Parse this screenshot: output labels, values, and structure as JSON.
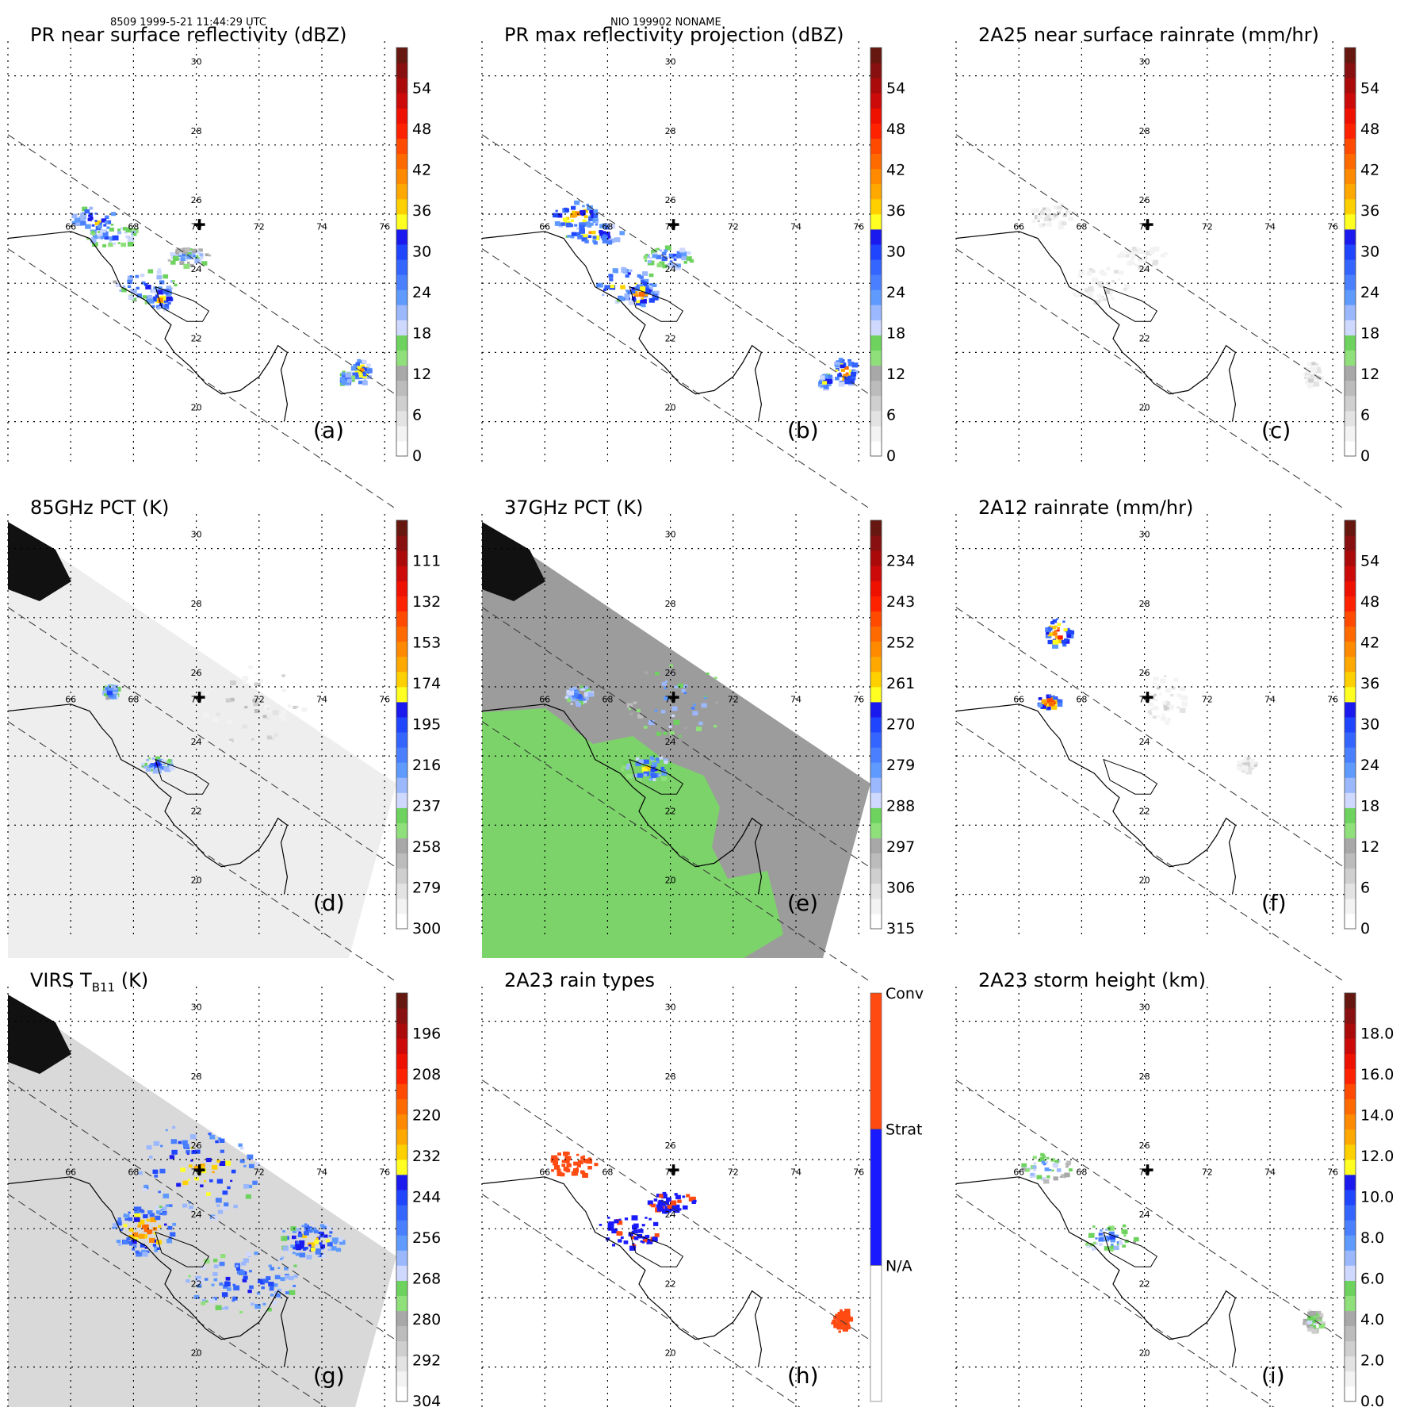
{
  "header": {
    "left": "8509 1999-5-21 11:44:29 UTC",
    "center": "NIO 199902 NONAME"
  },
  "colors": {
    "grid": "#000000",
    "swath": "#333333",
    "coast": "#000000"
  },
  "geo": {
    "lon_ticks": [
      "66",
      "68",
      "70",
      "72",
      "74",
      "76"
    ],
    "lat_ticks": [
      "30",
      "28",
      "26",
      "24",
      "22",
      "20"
    ],
    "storm_center": {
      "lon": 70.1,
      "lat": 25.7
    }
  },
  "chart_data": [
    {
      "type": "heatmap",
      "panel_label": "(a)",
      "title": "PR near surface reflectivity (dBZ)",
      "colorbar": {
        "type": "continuous",
        "ticks": [
          "0",
          "6",
          "12",
          "18",
          "24",
          "30",
          "36",
          "42",
          "48",
          "54"
        ],
        "range": [
          0,
          60
        ]
      },
      "field": "pr",
      "features": [
        {
          "lon": 66.7,
          "lat": 25.9,
          "rx": 0.7,
          "ry": 0.4,
          "level": 0.65
        },
        {
          "lon": 67.3,
          "lat": 25.4,
          "rx": 0.9,
          "ry": 0.3,
          "level": 0.5
        },
        {
          "lon": 68.3,
          "lat": 24.0,
          "rx": 1.0,
          "ry": 0.5,
          "level": 0.55
        },
        {
          "lon": 69.7,
          "lat": 24.8,
          "rx": 0.7,
          "ry": 0.25,
          "level": 0.45
        },
        {
          "lon": 68.8,
          "lat": 23.6,
          "rx": 0.4,
          "ry": 0.3,
          "level": 0.75
        },
        {
          "lon": 75.2,
          "lat": 21.5,
          "rx": 0.3,
          "ry": 0.35,
          "level": 0.7
        },
        {
          "lon": 74.7,
          "lat": 21.3,
          "rx": 0.2,
          "ry": 0.2,
          "level": 0.6
        }
      ]
    },
    {
      "type": "heatmap",
      "panel_label": "(b)",
      "title": "PR max reflectivity projection (dBZ)",
      "colorbar": {
        "type": "continuous",
        "ticks": [
          "0",
          "6",
          "12",
          "18",
          "24",
          "30",
          "36",
          "42",
          "48",
          "54"
        ],
        "range": [
          0,
          60
        ]
      },
      "field": "pr",
      "features": [
        {
          "lon": 66.9,
          "lat": 26.0,
          "rx": 0.8,
          "ry": 0.4,
          "level": 0.75
        },
        {
          "lon": 67.5,
          "lat": 25.5,
          "rx": 0.9,
          "ry": 0.3,
          "level": 0.7
        },
        {
          "lon": 68.5,
          "lat": 24.0,
          "rx": 1.0,
          "ry": 0.5,
          "level": 0.7
        },
        {
          "lon": 69.9,
          "lat": 24.8,
          "rx": 0.8,
          "ry": 0.3,
          "level": 0.55
        },
        {
          "lon": 69.0,
          "lat": 23.7,
          "rx": 0.5,
          "ry": 0.3,
          "level": 0.8
        },
        {
          "lon": 75.5,
          "lat": 21.5,
          "rx": 0.35,
          "ry": 0.4,
          "level": 0.8
        },
        {
          "lon": 74.9,
          "lat": 21.2,
          "rx": 0.2,
          "ry": 0.2,
          "level": 0.65
        }
      ]
    },
    {
      "type": "heatmap",
      "panel_label": "(c)",
      "title": "2A25 near surface rainrate (mm/hr)",
      "colorbar": {
        "type": "continuous",
        "ticks": [
          "0",
          "6",
          "12",
          "18",
          "24",
          "30",
          "36",
          "42",
          "48",
          "54"
        ],
        "range": [
          0,
          60
        ]
      },
      "field": "rain",
      "features": [
        {
          "lon": 67.0,
          "lat": 26.0,
          "rx": 0.7,
          "ry": 0.35,
          "level": 0.12
        },
        {
          "lon": 68.5,
          "lat": 24.0,
          "rx": 1.0,
          "ry": 0.5,
          "level": 0.08
        },
        {
          "lon": 69.9,
          "lat": 24.8,
          "rx": 0.8,
          "ry": 0.3,
          "level": 0.06
        },
        {
          "lon": 75.3,
          "lat": 21.4,
          "rx": 0.3,
          "ry": 0.35,
          "level": 0.1
        }
      ]
    },
    {
      "type": "heatmap",
      "panel_label": "(d)",
      "title": "85GHz PCT (K)",
      "colorbar": {
        "type": "continuous",
        "ticks": [
          "300",
          "279",
          "258",
          "237",
          "216",
          "195",
          "174",
          "153",
          "132",
          "111"
        ],
        "range": [
          300,
          90
        ]
      },
      "field": "pct85",
      "features": [
        {
          "lon": 67.2,
          "lat": 25.9,
          "rx": 0.25,
          "ry": 0.2,
          "level": 0.55
        },
        {
          "lon": 68.7,
          "lat": 23.8,
          "rx": 0.5,
          "ry": 0.2,
          "level": 0.55
        },
        {
          "lon": 71.8,
          "lat": 25.5,
          "rx": 1.8,
          "ry": 1.2,
          "level": 0.12
        }
      ]
    },
    {
      "type": "heatmap",
      "panel_label": "(e)",
      "title": "37GHz PCT (K)",
      "colorbar": {
        "type": "continuous",
        "ticks": [
          "315",
          "306",
          "297",
          "288",
          "279",
          "270",
          "261",
          "252",
          "243",
          "234"
        ],
        "range": [
          315,
          225
        ]
      },
      "field": "pct37",
      "features": [
        {
          "lon": 70.2,
          "lat": 25.6,
          "rx": 1.6,
          "ry": 1.1,
          "level": 0.45
        },
        {
          "lon": 69.2,
          "lat": 23.7,
          "rx": 0.8,
          "ry": 0.4,
          "level": 0.6
        },
        {
          "lon": 67.0,
          "lat": 25.8,
          "rx": 0.4,
          "ry": 0.3,
          "level": 0.55
        }
      ]
    },
    {
      "type": "heatmap",
      "panel_label": "(f)",
      "title": "2A12 rainrate (mm/hr)",
      "colorbar": {
        "type": "continuous",
        "ticks": [
          "0",
          "6",
          "12",
          "18",
          "24",
          "30",
          "36",
          "42",
          "48",
          "54"
        ],
        "range": [
          0,
          60
        ]
      },
      "field": "rain12",
      "features": [
        {
          "lon": 70.6,
          "lat": 25.7,
          "rx": 0.6,
          "ry": 0.7,
          "level": 0.08
        },
        {
          "lon": 67.2,
          "lat": 27.6,
          "rx": 0.4,
          "ry": 0.4,
          "level": 0.9
        },
        {
          "lon": 66.9,
          "lat": 25.6,
          "rx": 0.35,
          "ry": 0.2,
          "level": 0.9
        },
        {
          "lon": 73.2,
          "lat": 23.8,
          "rx": 0.3,
          "ry": 0.2,
          "level": 0.1
        }
      ]
    },
    {
      "type": "heatmap",
      "panel_label": "(g)",
      "title": "VIRS T",
      "title_sub": "B11",
      "title_unit": " (K)",
      "colorbar": {
        "type": "continuous",
        "ticks": [
          "304",
          "292",
          "280",
          "268",
          "256",
          "244",
          "232",
          "220",
          "208",
          "196"
        ],
        "range": [
          304,
          184
        ]
      },
      "field": "virs",
      "features": [
        {
          "lon": 70.0,
          "lat": 25.7,
          "rx": 1.9,
          "ry": 1.4,
          "level": 0.7
        },
        {
          "lon": 68.3,
          "lat": 24.0,
          "rx": 1.0,
          "ry": 0.7,
          "level": 0.8
        },
        {
          "lon": 71.5,
          "lat": 22.5,
          "rx": 2.0,
          "ry": 0.9,
          "level": 0.6
        },
        {
          "lon": 73.6,
          "lat": 23.7,
          "rx": 1.0,
          "ry": 0.5,
          "level": 0.7
        }
      ]
    },
    {
      "type": "heatmap",
      "panel_label": "(h)",
      "title": "2A23 rain types",
      "colorbar": {
        "type": "categorical",
        "categories": [
          "N/A",
          "Strat",
          "Conv"
        ],
        "colors": [
          "#ffffff",
          "#1a1aff",
          "#ff4a12"
        ]
      },
      "field": "raintype",
      "features": [
        {
          "lon": 66.8,
          "lat": 25.9,
          "rx": 0.8,
          "ry": 0.35,
          "level": 1
        },
        {
          "lon": 68.6,
          "lat": 24.0,
          "rx": 1.0,
          "ry": 0.5,
          "level": 0.5
        },
        {
          "lon": 70.0,
          "lat": 24.8,
          "rx": 0.8,
          "ry": 0.3,
          "level": 0.5
        },
        {
          "lon": 75.4,
          "lat": 21.4,
          "rx": 0.3,
          "ry": 0.35,
          "level": 1
        }
      ]
    },
    {
      "type": "heatmap",
      "panel_label": "(i)",
      "title": "2A23 storm height (km)",
      "colorbar": {
        "type": "continuous",
        "ticks": [
          "0.0",
          "2.0",
          "4.0",
          "6.0",
          "8.0",
          "10.0",
          "12.0",
          "14.0",
          "16.0",
          "18.0"
        ],
        "range": [
          0,
          20
        ]
      },
      "field": "height",
      "features": [
        {
          "lon": 66.8,
          "lat": 25.8,
          "rx": 0.8,
          "ry": 0.4,
          "level": 0.45
        },
        {
          "lon": 68.8,
          "lat": 23.8,
          "rx": 0.9,
          "ry": 0.4,
          "level": 0.5
        },
        {
          "lon": 75.3,
          "lat": 21.4,
          "rx": 0.3,
          "ry": 0.3,
          "level": 0.35
        }
      ]
    }
  ]
}
